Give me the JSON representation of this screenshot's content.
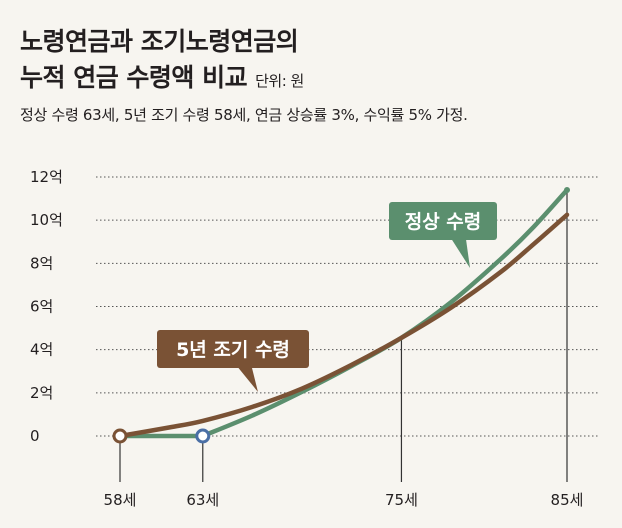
{
  "header": {
    "title_line1": "노령연금과 조기노령연금의",
    "title_line2": "누적 연금 수령액 비교",
    "unit": "단위: 원",
    "subtitle": "정상 수령 63세, 5년 조기 수령 58세, 연금 상승률 3%, 수익률 5% 가정."
  },
  "colors": {
    "normal": "#5b8f6e",
    "early": "#7a5235",
    "grid": "#555555",
    "background": "#f7f5f0"
  },
  "chart_data": {
    "type": "line",
    "title": "노령연금과 조기노령연금의 누적 연금 수령액 비교",
    "unit": "단위: 원",
    "x_ticks": [
      "58세",
      "63세",
      "75세",
      "85세"
    ],
    "x_tick_values": [
      58,
      63,
      75,
      85
    ],
    "y_ticks": [
      "0",
      "2억",
      "4억",
      "6억",
      "8억",
      "10억",
      "12억"
    ],
    "y_tick_values": [
      0,
      2,
      4,
      6,
      8,
      10,
      12
    ],
    "xlim": [
      58,
      85
    ],
    "ylim": [
      0,
      12
    ],
    "grid": true,
    "series": [
      {
        "name": "정상 수령",
        "color": "#5b8f6e",
        "x": [
          58,
          63,
          66,
          69,
          72,
          75,
          78,
          81,
          83,
          85
        ],
        "y": [
          0,
          0,
          0.95,
          2.05,
          3.25,
          4.55,
          6.2,
          8.2,
          9.7,
          11.4
        ]
      },
      {
        "name": "5년 조기 수령",
        "color": "#7a5235",
        "x": [
          58,
          61,
          63,
          66,
          69,
          72,
          75,
          78,
          81,
          83,
          85
        ],
        "y": [
          0,
          0.4,
          0.7,
          1.35,
          2.2,
          3.3,
          4.55,
          5.95,
          7.6,
          8.9,
          10.25
        ]
      }
    ],
    "annotations": [
      {
        "label": "정상 수령",
        "series": "정상 수령"
      },
      {
        "label": "5년 조기 수령",
        "series": "5년 조기 수령"
      }
    ]
  }
}
